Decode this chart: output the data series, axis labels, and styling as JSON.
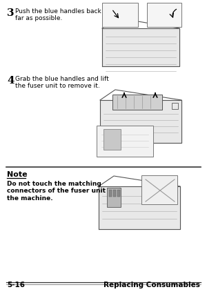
{
  "bg_color": "#ffffff",
  "step3_number": "3",
  "step3_text": "Push the blue handles back as\nfar as possible.",
  "step4_number": "4",
  "step4_text": "Grab the blue handles and lift\nthe fuser unit to remove it.",
  "note_title": "Note",
  "note_text": "Do not touch the matching\nconnectors of the fuser unit and\nthe machine.",
  "footer_left": "5-16",
  "footer_right": "Replacing Consumables",
  "text_color": "#000000",
  "gray_fill": "#e8e8e8",
  "light_fill": "#f2f2f2",
  "edge_color": "#555555",
  "line_color": "#aaaaaa"
}
